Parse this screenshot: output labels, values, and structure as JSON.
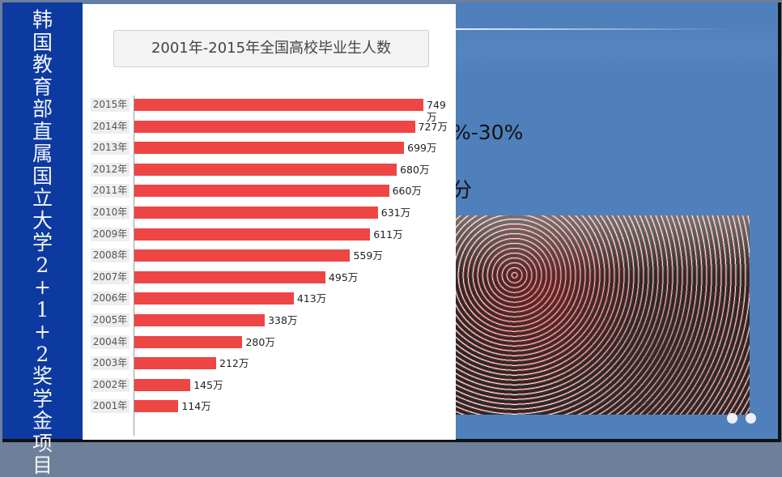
{
  "sidebar": {
    "title_chars": [
      "韩",
      "国",
      "教",
      "育",
      "部",
      "直",
      "属",
      "国",
      "立",
      "大",
      "学",
      "2",
      "+",
      "1",
      "+",
      "2",
      "奖",
      "学",
      "金",
      "项",
      "目"
    ]
  },
  "body": {
    "line1_fragment": "%-30%",
    "line2_fragment": "分"
  },
  "colors": {
    "sidebar": "#0d3aa0",
    "background": "#4f80bb",
    "bar": "#ee4545"
  },
  "chart_data": {
    "type": "bar",
    "orientation": "horizontal",
    "title": "2001年-2015年全国高校毕业生人数",
    "categories": [
      "2015年",
      "2014年",
      "2013年",
      "2012年",
      "2011年",
      "2010年",
      "2009年",
      "2008年",
      "2007年",
      "2006年",
      "2005年",
      "2004年",
      "2003年",
      "2002年",
      "2001年"
    ],
    "values": [
      749,
      727,
      699,
      680,
      660,
      631,
      611,
      559,
      495,
      413,
      338,
      280,
      212,
      145,
      114
    ],
    "data_labels": [
      "749万",
      "727万",
      "699万",
      "680万",
      "660万",
      "631万",
      "611万",
      "559万",
      "495万",
      "413万",
      "338万",
      "280万",
      "212万",
      "145万",
      "114万"
    ],
    "unit": "万",
    "xlim": [
      0,
      749
    ],
    "grid": false
  }
}
